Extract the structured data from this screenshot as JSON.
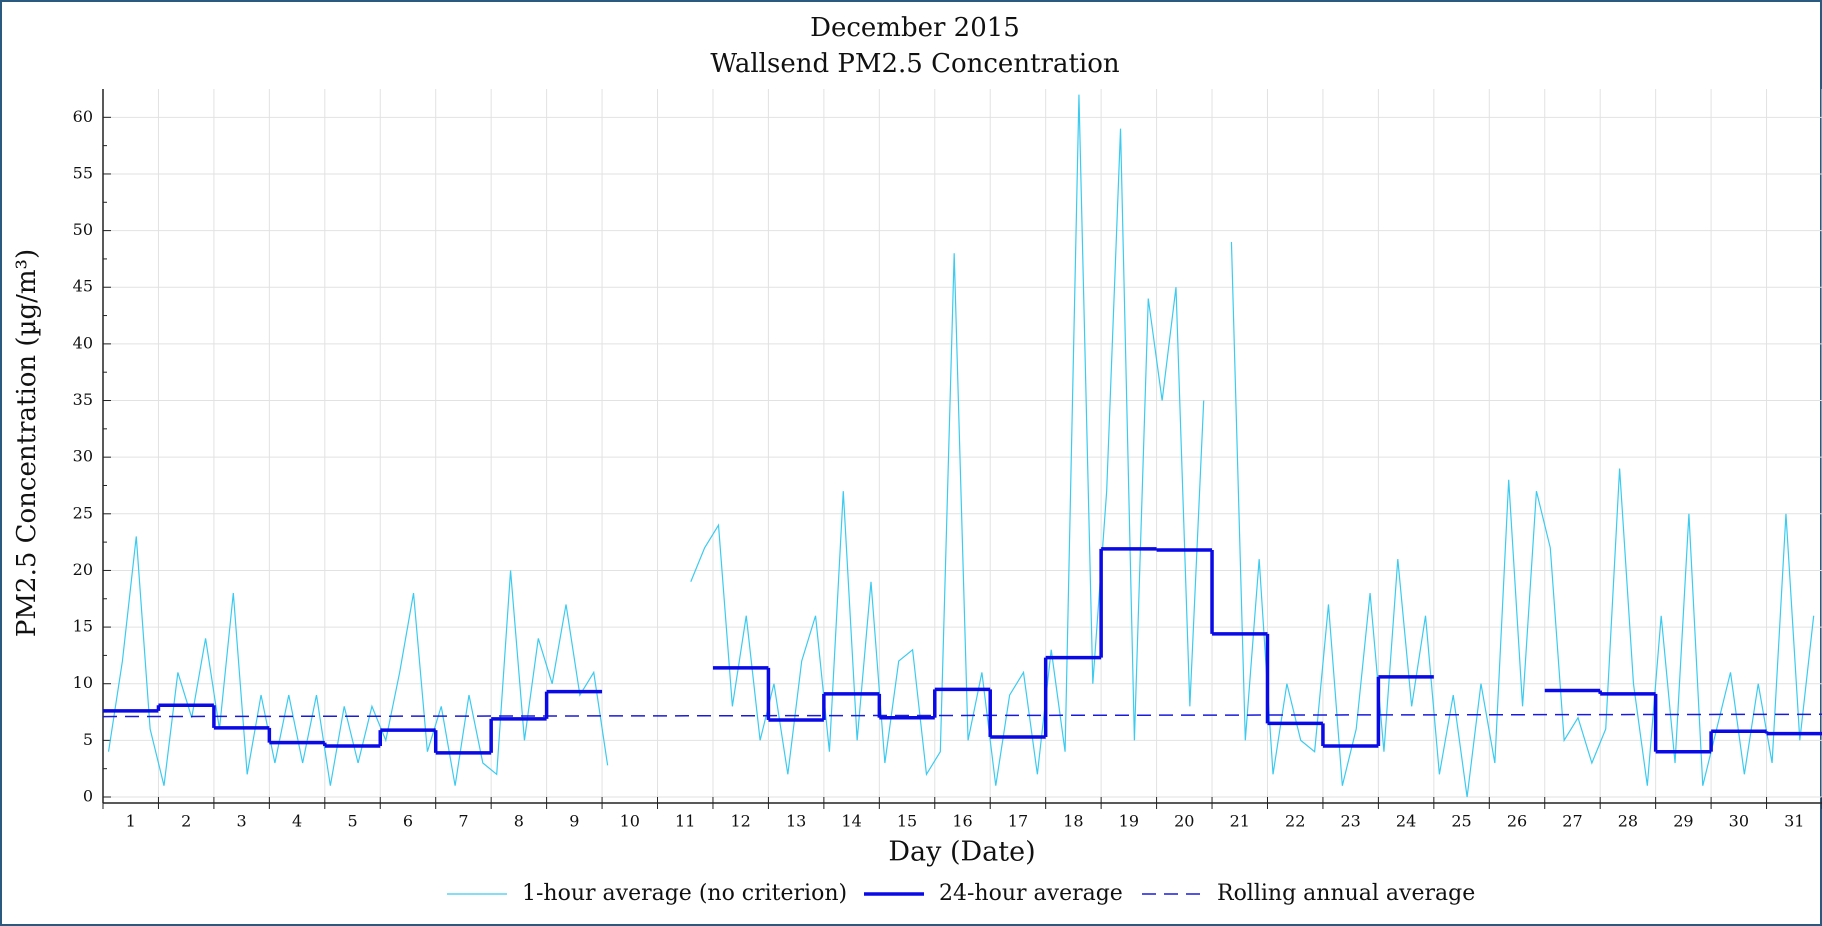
{
  "chart_data": {
    "type": "line",
    "title": "December 2015",
    "subtitle": "Wallsend PM2.5 Concentration",
    "xlabel": "Day (Date)",
    "ylabel": "PM2.5 Concentration (µg/m³)",
    "xlim": [
      0,
      31
    ],
    "xticks": [
      0,
      1,
      2,
      3,
      4,
      5,
      6,
      7,
      8,
      9,
      10,
      11,
      12,
      13,
      14,
      15,
      16,
      17,
      18,
      19,
      20,
      21,
      22,
      23,
      24,
      25,
      26,
      27,
      28,
      29,
      30,
      31
    ],
    "categories": [
      "1",
      "2",
      "3",
      "4",
      "5",
      "6",
      "7",
      "8",
      "9",
      "10",
      "11",
      "12",
      "13",
      "14",
      "15",
      "16",
      "17",
      "18",
      "19",
      "20",
      "21",
      "22",
      "23",
      "24",
      "25",
      "26",
      "27",
      "28",
      "29",
      "30",
      "31"
    ],
    "ylim": [
      0,
      62.5
    ],
    "yticks": [
      0,
      5,
      10,
      15,
      20,
      25,
      30,
      35,
      40,
      45,
      50,
      55,
      60
    ],
    "grid": true,
    "legend": "bottom",
    "hourly": {
      "name": "1-hour average (no criterion)",
      "color": "#3ccbef",
      "x": [
        0.1,
        0.35,
        0.6,
        0.85,
        1.1,
        1.35,
        1.6,
        1.85,
        2.1,
        2.35,
        2.6,
        2.85,
        3.1,
        3.35,
        3.6,
        3.85,
        4.1,
        4.35,
        4.6,
        4.85,
        5.1,
        5.35,
        5.6,
        5.85,
        6.1,
        6.35,
        6.6,
        6.85,
        7.1,
        7.35,
        7.6,
        7.85,
        8.1,
        8.35,
        8.6,
        8.85,
        9.1,
        9.35,
        9.6,
        9.85,
        10.1,
        10.35,
        10.6,
        10.85,
        11.1,
        11.35,
        11.6,
        11.85,
        12.1,
        12.35,
        12.6,
        12.85,
        13.1,
        13.35,
        13.6,
        13.85,
        14.1,
        14.35,
        14.6,
        14.85,
        15.1,
        15.35,
        15.6,
        15.85,
        16.1,
        16.35,
        16.6,
        16.85,
        17.1,
        17.35,
        17.6,
        17.85,
        18.1,
        18.35,
        18.6,
        18.85,
        19.1,
        19.35,
        19.6,
        19.85,
        20.1,
        20.35,
        20.6,
        20.85,
        21.1,
        21.35,
        21.6,
        21.85,
        22.1,
        22.35,
        22.6,
        22.85,
        23.1,
        23.35,
        23.6,
        23.85,
        24.1,
        24.35,
        24.6,
        24.85,
        25.1,
        25.35,
        25.6,
        25.85,
        26.1,
        26.35,
        26.6,
        26.85,
        27.1,
        27.35,
        27.6,
        27.85,
        28.1,
        28.35,
        28.6,
        28.85,
        29.1,
        29.35,
        29.6,
        29.85,
        30.1,
        30.35,
        30.6,
        30.85
      ],
      "values": [
        4,
        12,
        23,
        6,
        1,
        11,
        7,
        14,
        6,
        18,
        2,
        9,
        3,
        9,
        3,
        9,
        1,
        8,
        3,
        8,
        5,
        11,
        18,
        4,
        8,
        1,
        9,
        3,
        2,
        20,
        5,
        14,
        10,
        17,
        9,
        11,
        2.8,
        null,
        null,
        null,
        null,
        null,
        19,
        22,
        24,
        8,
        16,
        5,
        10,
        2,
        12,
        16,
        4,
        27,
        5,
        19,
        3,
        12,
        13,
        2,
        4,
        48,
        5,
        11,
        1,
        9,
        11,
        2,
        13,
        4,
        62,
        10,
        27,
        59,
        5,
        44,
        35,
        45,
        8,
        35,
        null,
        49,
        5,
        21,
        2,
        10,
        5,
        4,
        17,
        1,
        6,
        18,
        4,
        21,
        8,
        16,
        2,
        9,
        0,
        10,
        3,
        28,
        8,
        27,
        22,
        5,
        7,
        3,
        6,
        29,
        10,
        1,
        16,
        3,
        25,
        1,
        6,
        11,
        2,
        10,
        3,
        25,
        5,
        16
      ]
    },
    "daily": {
      "name": "24-hour average",
      "color": "#0a0ae6",
      "values": [
        7.6,
        8.1,
        6.1,
        4.8,
        4.5,
        5.9,
        3.9,
        6.9,
        9.3,
        null,
        null,
        11.4,
        6.8,
        9.1,
        7.0,
        9.5,
        5.3,
        12.3,
        21.9,
        21.8,
        14.4,
        6.5,
        4.5,
        10.6,
        null,
        null,
        9.4,
        9.1,
        4.0,
        5.8,
        5.6
      ]
    },
    "annual": {
      "name": "Rolling annual average",
      "color": "#1a1adc",
      "x": [
        0,
        31
      ],
      "values": [
        7.1,
        7.3
      ]
    }
  }
}
